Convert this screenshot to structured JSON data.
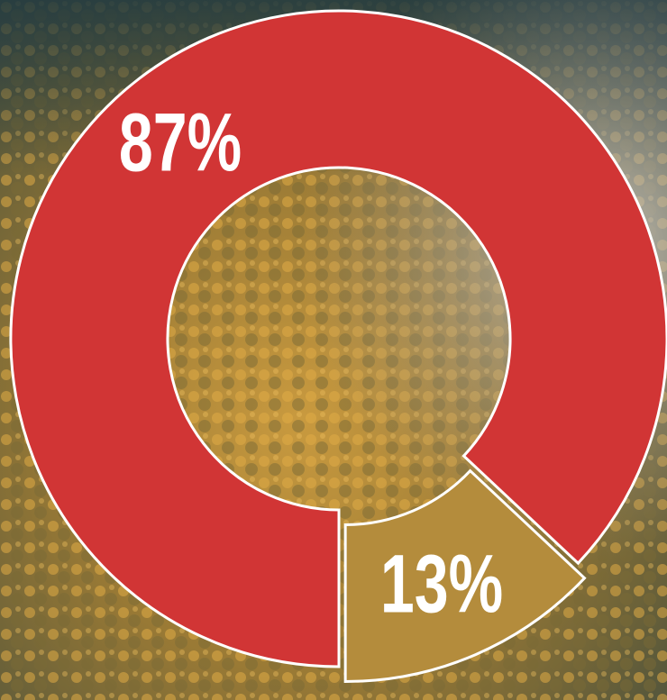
{
  "chart_data": {
    "type": "donut",
    "values": [
      87,
      13
    ],
    "value_labels": [
      "87%",
      "13%"
    ],
    "colors": [
      "#d13535",
      "#b48c3c"
    ]
  }
}
